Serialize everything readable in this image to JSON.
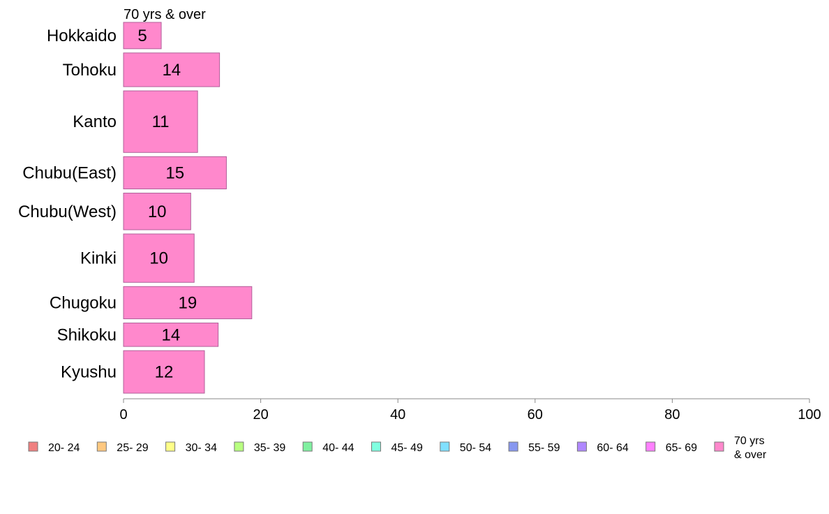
{
  "chart_data": {
    "type": "bar",
    "orientation": "horizontal",
    "series_title": "70 yrs & over",
    "categories": [
      "Hokkaido",
      "Tohoku",
      "Kanto",
      "Chubu(East)",
      "Chubu(West)",
      "Kinki",
      "Chugoku",
      "Shikoku",
      "Kyushu"
    ],
    "values": [
      5,
      14,
      11,
      15,
      10,
      10,
      19,
      14,
      12
    ],
    "display_values": [
      5.5,
      14,
      10.8,
      15,
      9.8,
      10.3,
      18.7,
      13.8,
      11.8
    ],
    "bar_thickness_weights": [
      0.9,
      1.15,
      2.1,
      1.1,
      1.25,
      1.65,
      1.1,
      0.8,
      1.45
    ],
    "xlim": [
      0,
      100
    ],
    "xticks": [
      0,
      20,
      40,
      60,
      80,
      100
    ],
    "bar_color": "#ff88cc",
    "bar_stroke": "#b0609a",
    "axis_color": "#888888",
    "legend": {
      "placement": "bottom",
      "items": [
        {
          "label": "20- 24",
          "color": "#f08080"
        },
        {
          "label": "25- 29",
          "color": "#ffc880"
        },
        {
          "label": "30- 34",
          "color": "#ffff88"
        },
        {
          "label": "35- 39",
          "color": "#b8ff80"
        },
        {
          "label": "40- 44",
          "color": "#80f0a0"
        },
        {
          "label": "45- 49",
          "color": "#80ffe0"
        },
        {
          "label": "50- 54",
          "color": "#80e0ff"
        },
        {
          "label": "55- 59",
          "color": "#8898f0"
        },
        {
          "label": "60- 64",
          "color": "#b088ff"
        },
        {
          "label": "65- 69",
          "color": "#ff80ff"
        },
        {
          "label": "70 yrs\n& over",
          "color": "#ff88cc"
        }
      ]
    }
  }
}
